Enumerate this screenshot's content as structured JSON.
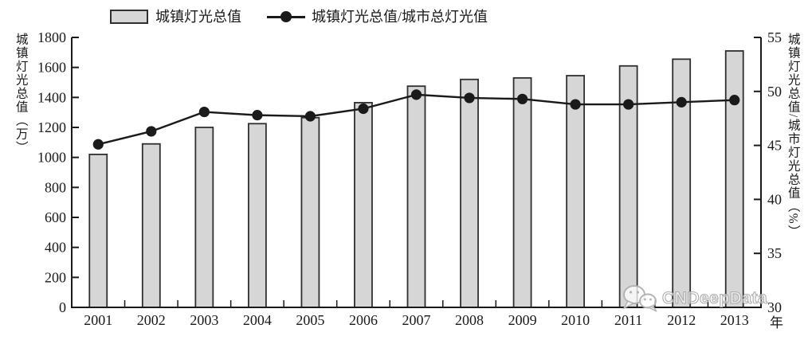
{
  "chart_data": {
    "type": "combo",
    "series_types": [
      "bar",
      "line"
    ],
    "categories": [
      "2001",
      "2002",
      "2003",
      "2004",
      "2005",
      "2006",
      "2007",
      "2008",
      "2009",
      "2010",
      "2011",
      "2012",
      "2013"
    ],
    "series": [
      {
        "name": "城镇灯光总值",
        "type": "bar",
        "axis": "left",
        "values": [
          1020,
          1090,
          1200,
          1225,
          1265,
          1365,
          1475,
          1520,
          1530,
          1545,
          1610,
          1655,
          1710
        ]
      },
      {
        "name": "城镇灯光总值/城市总灯光值",
        "type": "line",
        "axis": "right",
        "values": [
          45.1,
          46.3,
          48.1,
          47.8,
          47.7,
          48.4,
          49.7,
          49.4,
          49.3,
          48.8,
          48.8,
          49.0,
          49.2
        ]
      }
    ],
    "left_axis": {
      "label": "城镇灯光总值（万）",
      "min": 0,
      "max": 1800,
      "step": 200,
      "ticks": [
        0,
        200,
        400,
        600,
        800,
        1000,
        1200,
        1400,
        1600,
        1800
      ]
    },
    "right_axis": {
      "label": "城镇灯光总值/城市灯光总值（%）",
      "min": 30,
      "max": 55,
      "step": 5,
      "ticks": [
        30,
        35,
        40,
        45,
        50,
        55
      ]
    },
    "x_axis_unit": "年",
    "grid": false,
    "legend_position": "top"
  },
  "watermark": {
    "text": "CNDeepData",
    "icon": "chat-bubbles-icon"
  },
  "colors": {
    "bar_fill": "#d6d6d6",
    "bar_border": "#2f2f2f",
    "line": "#1a1a1a",
    "axis": "#1a1a1a",
    "watermark": "#adadad"
  }
}
